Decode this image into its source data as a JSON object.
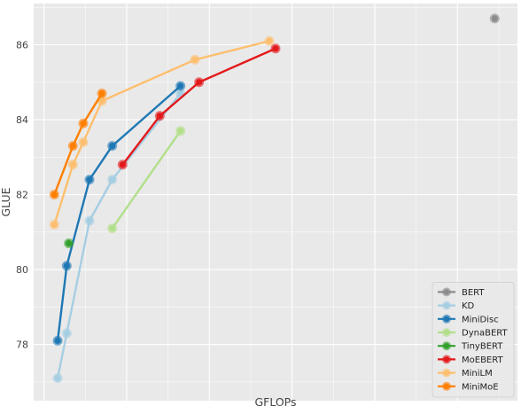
{
  "chart_data": {
    "type": "line",
    "title": "",
    "xlabel": "GFLOPs",
    "ylabel": "GLUE",
    "xlim": [
      -0.25,
      11.45
    ],
    "ylim": [
      76.5,
      87.1
    ],
    "xticks": [
      0,
      2,
      4,
      6,
      8,
      10
    ],
    "yticks": [
      78,
      80,
      82,
      84,
      86
    ],
    "grid": true,
    "legend_position": "bottom-right",
    "series": [
      {
        "name": "BERT",
        "color": "#8c8c8c",
        "x": [
          10.9
        ],
        "y": [
          86.7
        ]
      },
      {
        "name": "KD",
        "color": "#a6cee3",
        "x": [
          0.33,
          0.55,
          1.1,
          1.65,
          3.3
        ],
        "y": [
          77.1,
          78.3,
          81.3,
          82.4,
          84.7
        ]
      },
      {
        "name": "MiniDisc",
        "color": "#1f78b4",
        "x": [
          0.33,
          0.55,
          1.1,
          1.65,
          3.3
        ],
        "y": [
          78.1,
          80.1,
          82.4,
          83.3,
          84.9
        ]
      },
      {
        "name": "DynaBERT",
        "color": "#b2df8a",
        "x": [
          1.65,
          3.3
        ],
        "y": [
          81.1,
          83.7
        ]
      },
      {
        "name": "TinyBERT",
        "color": "#33a02c",
        "x": [
          0.6
        ],
        "y": [
          80.7
        ]
      },
      {
        "name": "MoEBERT",
        "color": "#e31a1c",
        "x": [
          1.9,
          2.8,
          3.75,
          5.6
        ],
        "y": [
          82.8,
          84.1,
          85.0,
          85.9
        ]
      },
      {
        "name": "MiniLM",
        "color": "#fdbf6f",
        "x": [
          0.25,
          0.7,
          0.95,
          1.4,
          3.65,
          5.45
        ],
        "y": [
          81.2,
          82.8,
          83.4,
          84.5,
          85.6,
          86.1
        ]
      },
      {
        "name": "MiniMoE",
        "color": "#ff7f00",
        "x": [
          0.25,
          0.7,
          0.95,
          1.4
        ],
        "y": [
          82.0,
          83.3,
          83.9,
          84.7
        ]
      }
    ]
  }
}
